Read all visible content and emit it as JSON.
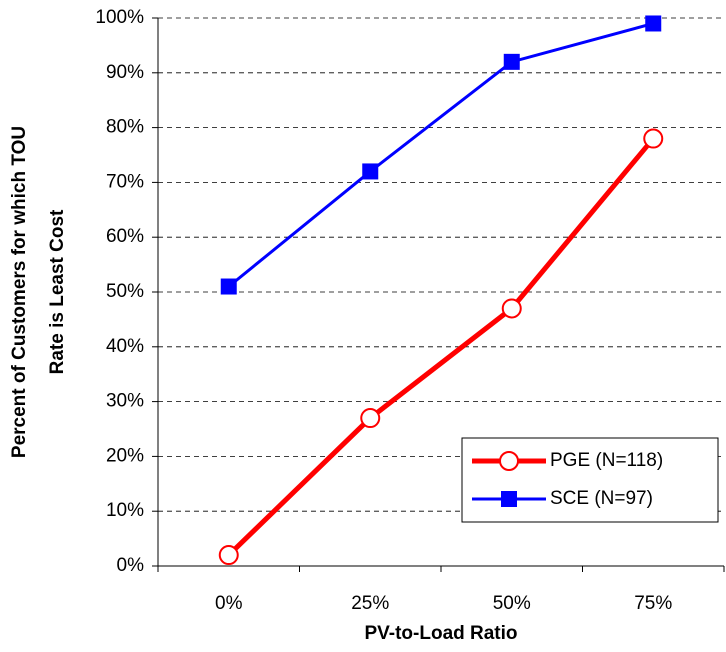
{
  "chart_data": {
    "type": "line",
    "x_label": "PV-to-Load Ratio",
    "y_label": [
      "Percent of Customers for which TOU",
      "Rate is Least Cost"
    ],
    "categories": [
      "0%",
      "25%",
      "50%",
      "75%"
    ],
    "series": [
      {
        "name": "PGE (N=118)",
        "color": "#ff0000",
        "marker": "open-circle",
        "values": [
          2,
          27,
          47,
          78
        ]
      },
      {
        "name": "SCE (N=97)",
        "color": "#0000ff",
        "marker": "square",
        "values": [
          51,
          72,
          92,
          99
        ]
      }
    ],
    "ylim": [
      0,
      100
    ],
    "yticks": [
      {
        "value": 0,
        "label": "0%"
      },
      {
        "value": 10,
        "label": "10%"
      },
      {
        "value": 20,
        "label": "20%"
      },
      {
        "value": 30,
        "label": "30%"
      },
      {
        "value": 40,
        "label": "40%"
      },
      {
        "value": 50,
        "label": "50%"
      },
      {
        "value": 60,
        "label": "60%"
      },
      {
        "value": 70,
        "label": "70%"
      },
      {
        "value": 80,
        "label": "80%"
      },
      {
        "value": 90,
        "label": "90%"
      },
      {
        "value": 100,
        "label": "100%"
      }
    ],
    "grid": true,
    "legend": "lower right"
  }
}
